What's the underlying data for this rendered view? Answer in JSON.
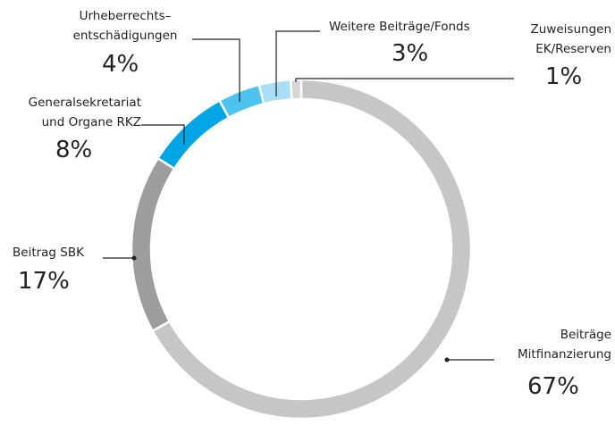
{
  "chart_data": {
    "type": "pie",
    "donut": true,
    "categories": [
      "Beiträge\nMitfinanzierung",
      "Beitrag SBK",
      "Generalsekretariat\nund Organe RKZ",
      "Urheberrechts–\nentschädigungen",
      "Weitere Beiträge/Fonds",
      "Zuweisungen\nEK/Reserven"
    ],
    "values": [
      67,
      17,
      8,
      4,
      3,
      1
    ],
    "value_labels": [
      "67%",
      "17%",
      "8%",
      "4%",
      "3%",
      "1%"
    ],
    "colors": [
      "#c6c6c6",
      "#9d9d9e",
      "#00a5e6",
      "#4fc3f0",
      "#a8dff7",
      "#d6d6d6"
    ]
  }
}
